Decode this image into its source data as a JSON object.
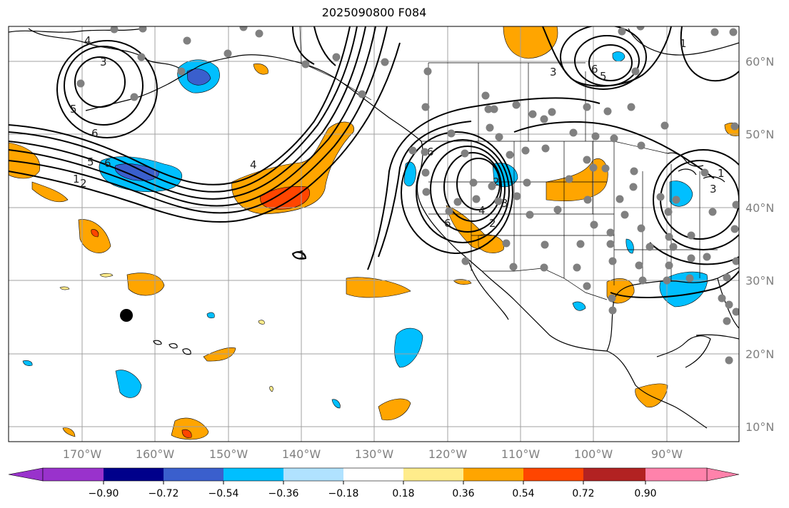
{
  "title": "2025090800 F084",
  "latitude_labels": [
    "60°N",
    "50°N",
    "40°N",
    "30°N",
    "20°N",
    "10°N"
  ],
  "longitude_labels": [
    "170°W",
    "160°W",
    "150°W",
    "140°W",
    "130°W",
    "120°W",
    "110°W",
    "100°W",
    "90°W"
  ],
  "colorbar": {
    "tick_labels": [
      "−0.90",
      "−0.72",
      "−0.54",
      "−0.36",
      "−0.18",
      "0.18",
      "0.36",
      "0.54",
      "0.72",
      "0.90"
    ],
    "colors": [
      "#9932cc",
      "#00008b",
      "#3a5fcd",
      "#00bfff",
      "#b0e2ff",
      "#ffffff",
      "#ffec8b",
      "#ffa500",
      "#ff4500",
      "#b22222",
      "#ff82ab"
    ]
  },
  "contour_labels": [
    "4",
    "3",
    "5",
    "6",
    "5",
    "6",
    "1",
    "2",
    "4",
    "1",
    "6",
    "4",
    "3",
    "2",
    "6",
    "5",
    "3",
    "1",
    "3",
    "1",
    "2",
    "6"
  ]
}
